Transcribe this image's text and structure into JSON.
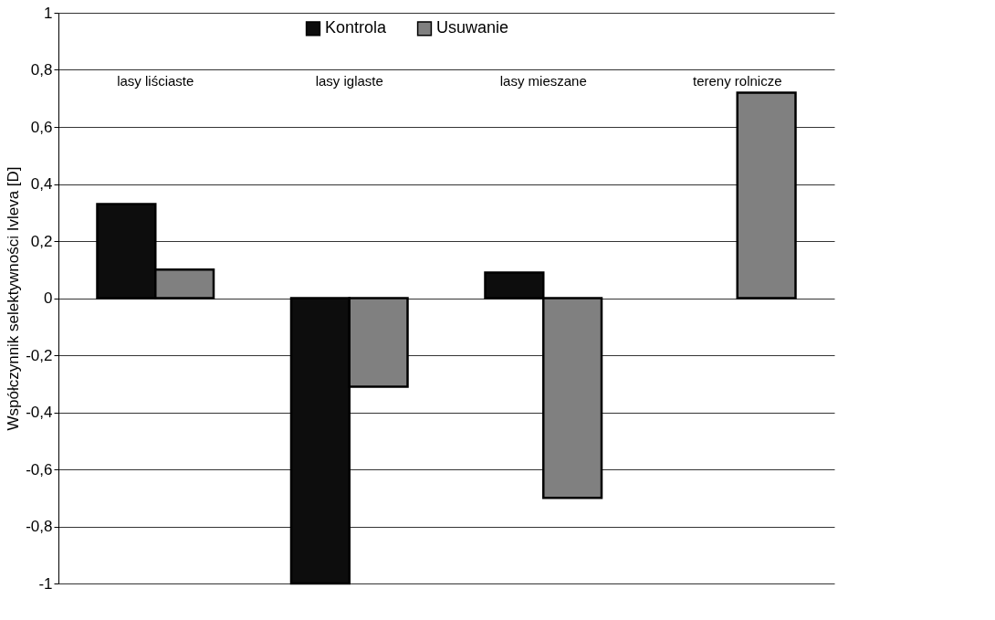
{
  "chart_data": {
    "type": "bar",
    "ylabel": "Współczynnik selektywności  Ivleva [D]",
    "categories": [
      "lasy liściaste",
      "lasy iglaste",
      "lasy mieszane",
      "tereny rolnicze"
    ],
    "series": [
      {
        "name": "Kontrola",
        "color": "#0d0d0d",
        "values": [
          0.33,
          -1.0,
          0.09,
          null
        ]
      },
      {
        "name": "Usuwanie",
        "color": "#808080",
        "values": [
          0.1,
          -0.31,
          -0.7,
          0.72
        ]
      }
    ],
    "ylim": [
      -1,
      1
    ],
    "yticks": [
      {
        "value": -1,
        "label": "-1"
      },
      {
        "value": -0.8,
        "label": "-0,8"
      },
      {
        "value": -0.6,
        "label": "-0,6"
      },
      {
        "value": -0.4,
        "label": "-0,4"
      },
      {
        "value": -0.2,
        "label": "-0,2"
      },
      {
        "value": 0,
        "label": "0"
      },
      {
        "value": 0.2,
        "label": "0,2"
      },
      {
        "value": 0.4,
        "label": "0,4"
      },
      {
        "value": 0.6,
        "label": "0,6"
      },
      {
        "value": 0.8,
        "label": "0,8"
      },
      {
        "value": 1,
        "label": "1"
      }
    ],
    "grid": "y",
    "legend": "top"
  }
}
